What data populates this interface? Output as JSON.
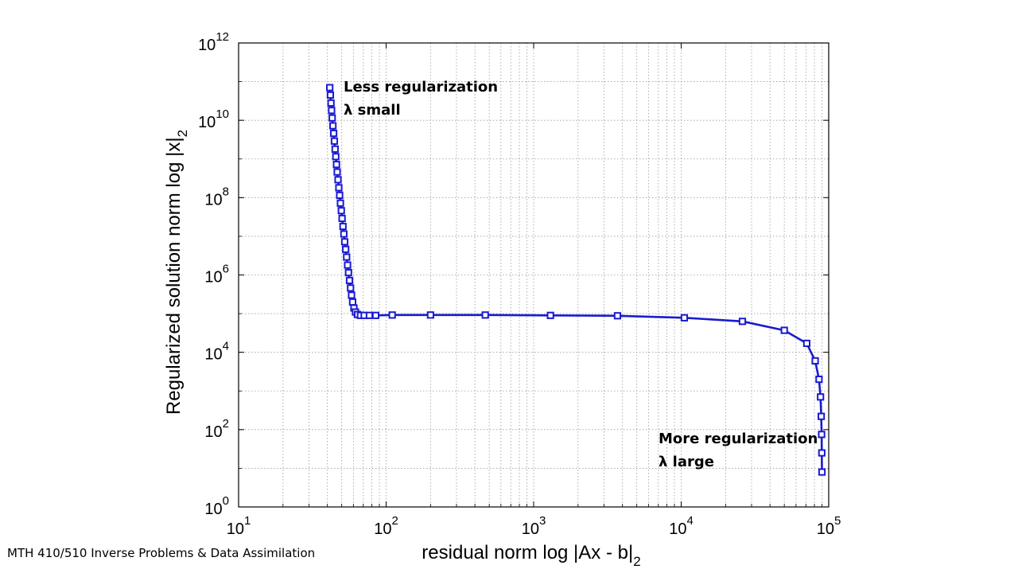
{
  "footer_text": "MTH 410/510 Inverse Problems & Data Assimilation",
  "chart_data": {
    "type": "line",
    "xscale": "log",
    "yscale": "log",
    "xlim": [
      10,
      100000
    ],
    "ylim": [
      1,
      1000000000000
    ],
    "grid": true,
    "xlabel": "residual norm log |Ax - b|",
    "xlabel_subscript": "2",
    "ylabel": "Regularized solution norm log |x|",
    "ylabel_subscript": "2",
    "x_ticks": [
      {
        "base": "10",
        "exp": "1",
        "value": 10
      },
      {
        "base": "10",
        "exp": "2",
        "value": 100
      },
      {
        "base": "10",
        "exp": "3",
        "value": 1000
      },
      {
        "base": "10",
        "exp": "4",
        "value": 10000
      },
      {
        "base": "10",
        "exp": "5",
        "value": 100000
      }
    ],
    "y_ticks": [
      {
        "base": "10",
        "exp": "0",
        "value": 1
      },
      {
        "base": "10",
        "exp": "2",
        "value": 100
      },
      {
        "base": "10",
        "exp": "4",
        "value": 10000
      },
      {
        "base": "10",
        "exp": "6",
        "value": 1000000
      },
      {
        "base": "10",
        "exp": "8",
        "value": 100000000
      },
      {
        "base": "10",
        "exp": "10",
        "value": 10000000000
      },
      {
        "base": "10",
        "exp": "12",
        "value": 1000000000000
      }
    ],
    "line_color": "#1a1ad0",
    "marker": "square",
    "series": [
      {
        "x": [
          41.5,
          41.9,
          42.3,
          42.7,
          43.1,
          43.6,
          44.1,
          44.6,
          45.1,
          45.6,
          46.1,
          46.6,
          47.2,
          47.8,
          48.4,
          49.0,
          49.7,
          50.3,
          51.0,
          51.7,
          52.4,
          53.2,
          54.0,
          54.8,
          55.6,
          56.5,
          57.4,
          58.3,
          59.3,
          60.5,
          62.0,
          64.0,
          67.0,
          71.0,
          77.0,
          85.0,
          110,
          200,
          470,
          1300,
          3700,
          10500,
          26000,
          50000,
          71000,
          81000,
          86000,
          88000,
          89000,
          89500,
          89800,
          90000
        ],
        "y": [
          70000000000.0,
          45000000000.0,
          28000000000.0,
          18000000000.0,
          11500000000.0,
          7200000000.0,
          4600000000.0,
          2900000000.0,
          1800000000.0,
          1150000000.0,
          720000000.0,
          460000000.0,
          290000000.0,
          180000000.0,
          115000000.0,
          72000000.0,
          46000000.0,
          29000000.0,
          18000000.0,
          11500000.0,
          7200000.0,
          4600000.0,
          2900000.0,
          1800000.0,
          1150000.0,
          720000.0,
          460000.0,
          300000.0,
          200000.0,
          140000.0,
          110000.0,
          95000.0,
          90000.0,
          90000.0,
          90000.0,
          90000.0,
          92000.0,
          92000.0,
          92000.0,
          90000.0,
          88000.0,
          78000.0,
          63000.0,
          37000.0,
          17000.0,
          6000.0,
          2000.0,
          700.0,
          220.0,
          75.0,
          25.0,
          8.0
        ]
      }
    ],
    "annotations": [
      {
        "lines": [
          "Less regularization",
          "λ small"
        ],
        "anchor": "top-left"
      },
      {
        "lines": [
          "More regularization",
          "λ large"
        ],
        "anchor": "bottom-right"
      }
    ]
  }
}
